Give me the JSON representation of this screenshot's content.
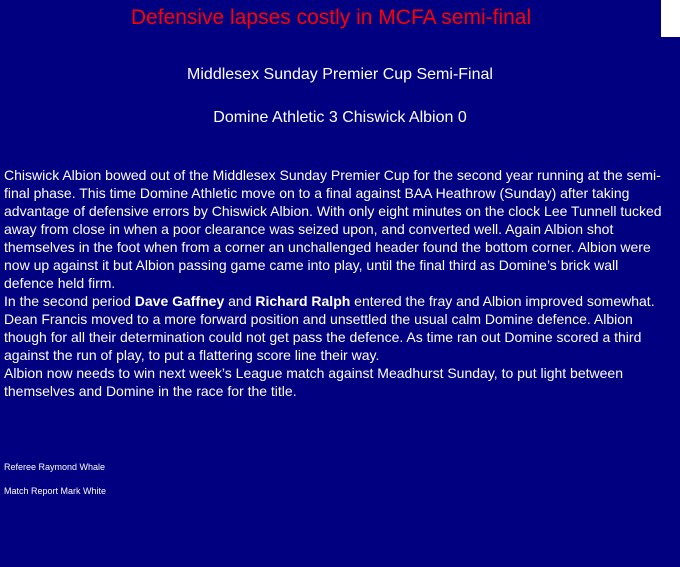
{
  "headline": "Defensive lapses costly in MCFA semi-final",
  "subtitle": "Middlesex Sunday Premier Cup Semi-Final",
  "score_line": "Domine Athletic 3 Chiswick Albion 0",
  "article": {
    "paragraph_1": "Chiswick Albion bowed out of the Middlesex Sunday Premier Cup for the second year running at the semi-final phase. This time Domine Athletic move on to a final against BAA Heathrow (Sunday) after taking advantage of defensive errors by Chiswick Albion. With only eight minutes on the clock Lee Tunnell tucked away from close in when a poor clearance was seized upon, and converted well.  Again Albion shot themselves in the foot when from a corner  an unchallenged header found the bottom corner. Albion were now up against it but Albion passing game came into play, until the final third as Domine’s brick wall defence held firm.",
    "paragraph_2": {
      "intro": "In the second period ",
      "player_1": "Dave Gaffney",
      "and": " and ",
      "player_2": "Richard Ralph",
      "rest": " entered the fray and Albion improved somewhat. Dean Francis moved to a more forward position and unsettled the usual calm Domine defence. Albion though for all their determination could not get pass the defence. As time ran out Domine scored a third against the run of play, to put a flattering score line their way."
    },
    "paragraph_3": "Albion now needs to win next week’s League match against Meadhurst Sunday, to put light between themselves and Domine in the race for the title."
  },
  "credits": {
    "referee": "Referee Raymond Whale",
    "reporter": "Match Report Mark White"
  },
  "colors": {
    "background": "#000080",
    "headline": "#ff0000",
    "text": "#ffffff"
  }
}
